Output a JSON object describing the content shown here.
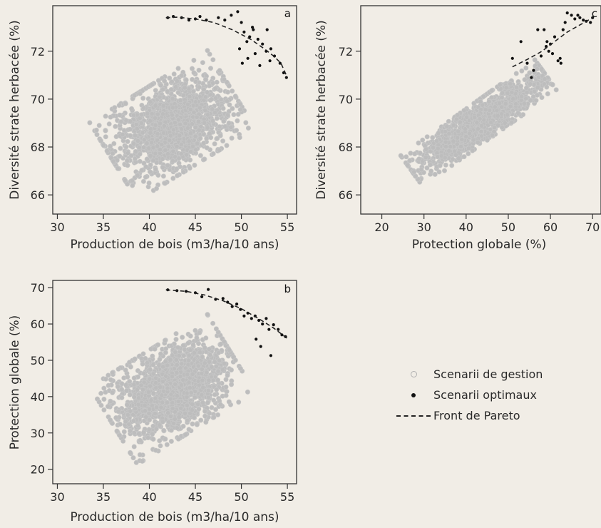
{
  "colors": {
    "background": "#f1ede6",
    "cloud": "#bdbdbd",
    "optimal": "#111111",
    "front": "#222222"
  },
  "legend": {
    "items": [
      {
        "label": "Scenarii de gestion",
        "symbol": "open-circle",
        "color": "#b0b0b0"
      },
      {
        "label": "Scenarii optimaux",
        "symbol": "filled-dot",
        "color": "#111111"
      },
      {
        "label": "Front de Pareto",
        "symbol": "dashed-line",
        "color": "#222222"
      }
    ]
  },
  "chart_data": [
    {
      "panel": "a",
      "type": "scatter",
      "xlabel": "Production de bois (m3/ha/10 ans)",
      "ylabel": "Diversité strate herbacée (%)",
      "xlim": [
        29.5,
        56
      ],
      "ylim": [
        65.2,
        73.9
      ],
      "xticks": [
        30,
        35,
        40,
        45,
        50,
        55
      ],
      "yticks": [
        66,
        68,
        70,
        72
      ],
      "cloud": {
        "name": "Scenarii de gestion",
        "x_range": [
          30,
          55
        ],
        "y_range": [
          65.4,
          73.4
        ],
        "center": [
          42.5,
          68.9
        ],
        "orientation": "rising"
      },
      "optimal_points": [
        [
          42,
          73.4
        ],
        [
          42.6,
          73.45
        ],
        [
          43.5,
          73.4
        ],
        [
          44.3,
          73.3
        ],
        [
          45,
          73.35
        ],
        [
          45.5,
          73.45
        ],
        [
          46.2,
          73.3
        ],
        [
          47.5,
          73.4
        ],
        [
          48.2,
          73.3
        ],
        [
          48.9,
          73.5
        ],
        [
          49.6,
          73.65
        ],
        [
          50,
          73.2
        ],
        [
          50.3,
          72.8
        ],
        [
          50.6,
          72.4
        ],
        [
          50.9,
          72.6
        ],
        [
          51.3,
          72.9
        ],
        [
          51.8,
          72.5
        ],
        [
          52.3,
          72.3
        ],
        [
          52.7,
          72.0
        ],
        [
          53.2,
          72.1
        ],
        [
          53.6,
          71.8
        ],
        [
          54.2,
          71.5
        ],
        [
          54.6,
          71.1
        ],
        [
          50.1,
          71.5
        ],
        [
          50.7,
          71.7
        ],
        [
          51.5,
          71.9
        ],
        [
          52,
          71.4
        ],
        [
          53.1,
          71.6
        ],
        [
          54.9,
          70.9
        ],
        [
          49.8,
          72.1
        ],
        [
          51.2,
          73.0
        ],
        [
          52.8,
          72.9
        ]
      ],
      "pareto_front": [
        [
          41.8,
          73.4
        ],
        [
          43,
          73.42
        ],
        [
          45,
          73.35
        ],
        [
          47,
          73.2
        ],
        [
          49,
          72.9
        ],
        [
          51,
          72.5
        ],
        [
          52.5,
          72.1
        ],
        [
          53.5,
          71.8
        ],
        [
          54.3,
          71.5
        ],
        [
          55,
          70.9
        ]
      ]
    },
    {
      "panel": "b",
      "type": "scatter",
      "xlabel": "Production de bois (m3/ha/10 ans)",
      "ylabel": "Protection globale (%)",
      "xlim": [
        29.5,
        56
      ],
      "ylim": [
        16,
        72
      ],
      "xticks": [
        30,
        35,
        40,
        45,
        50,
        55
      ],
      "yticks": [
        20,
        30,
        40,
        50,
        60,
        70
      ],
      "cloud": {
        "name": "Scenarii de gestion",
        "x_range": [
          30,
          55
        ],
        "y_range": [
          17,
          70
        ],
        "center": [
          42.5,
          42
        ],
        "orientation": "rising"
      },
      "optimal_points": [
        [
          42,
          69.4
        ],
        [
          43,
          69.2
        ],
        [
          44,
          69.0
        ],
        [
          45,
          68.6
        ],
        [
          45.7,
          67.5
        ],
        [
          46.4,
          69.5
        ],
        [
          47.2,
          66.8
        ],
        [
          48,
          67.0
        ],
        [
          48.5,
          66.0
        ],
        [
          49,
          64.8
        ],
        [
          49.5,
          65.5
        ],
        [
          49.9,
          64.0
        ],
        [
          50.3,
          62.2
        ],
        [
          50.7,
          63.0
        ],
        [
          51.1,
          61.5
        ],
        [
          51.5,
          62.2
        ],
        [
          51.9,
          61.0
        ],
        [
          52.3,
          60.0
        ],
        [
          52.7,
          61.5
        ],
        [
          53,
          58.5
        ],
        [
          53.5,
          59.8
        ],
        [
          54,
          58.5
        ],
        [
          54.4,
          57.0
        ],
        [
          54.8,
          56.5
        ],
        [
          52.1,
          53.8
        ],
        [
          53.2,
          51.3
        ],
        [
          51.6,
          55.8
        ]
      ],
      "pareto_front": [
        [
          41.8,
          69.4
        ],
        [
          44,
          69.0
        ],
        [
          46,
          68.0
        ],
        [
          48,
          66.4
        ],
        [
          50,
          64.2
        ],
        [
          52,
          61.3
        ],
        [
          53.5,
          58.9
        ],
        [
          55,
          56.0
        ]
      ]
    },
    {
      "panel": "c",
      "type": "scatter",
      "xlabel": "Protection globale (%)",
      "ylabel": "Diversité strate herbacée (%)",
      "xlim": [
        15,
        72
      ],
      "ylim": [
        65.2,
        73.9
      ],
      "xticks": [
        20,
        30,
        40,
        50,
        60,
        70
      ],
      "yticks": [
        66,
        68,
        70,
        72
      ],
      "cloud": {
        "name": "Scenarii de gestion",
        "x_range": [
          18,
          70
        ],
        "y_range": [
          65.4,
          73.4
        ],
        "center": [
          43,
          69.0
        ],
        "orientation": "rising-strong"
      },
      "optimal_points": [
        [
          51,
          71.7
        ],
        [
          53,
          72.4
        ],
        [
          54.5,
          71.5
        ],
        [
          55.5,
          70.9
        ],
        [
          56,
          71.2
        ],
        [
          57,
          72.9
        ],
        [
          57.8,
          71.8
        ],
        [
          58.5,
          72.9
        ],
        [
          59,
          72.2
        ],
        [
          59.6,
          72.0
        ],
        [
          60,
          72.3
        ],
        [
          60.5,
          71.9
        ],
        [
          61,
          72.6
        ],
        [
          61.8,
          71.6
        ],
        [
          62.3,
          71.7
        ],
        [
          63,
          72.9
        ],
        [
          63.5,
          73.2
        ],
        [
          64,
          73.6
        ],
        [
          65,
          73.5
        ],
        [
          65.8,
          73.35
        ],
        [
          66.5,
          73.5
        ],
        [
          67,
          73.4
        ],
        [
          67.8,
          73.3
        ],
        [
          68.5,
          73.25
        ],
        [
          69.5,
          73.2
        ],
        [
          70,
          73.4
        ],
        [
          62.5,
          71.5
        ],
        [
          59.2,
          72.4
        ]
      ],
      "pareto_front": [
        [
          51,
          71.35
        ],
        [
          55,
          71.7
        ],
        [
          58,
          72.0
        ],
        [
          61,
          72.4
        ],
        [
          64,
          72.8
        ],
        [
          67,
          73.1
        ],
        [
          70,
          73.4
        ]
      ]
    }
  ]
}
